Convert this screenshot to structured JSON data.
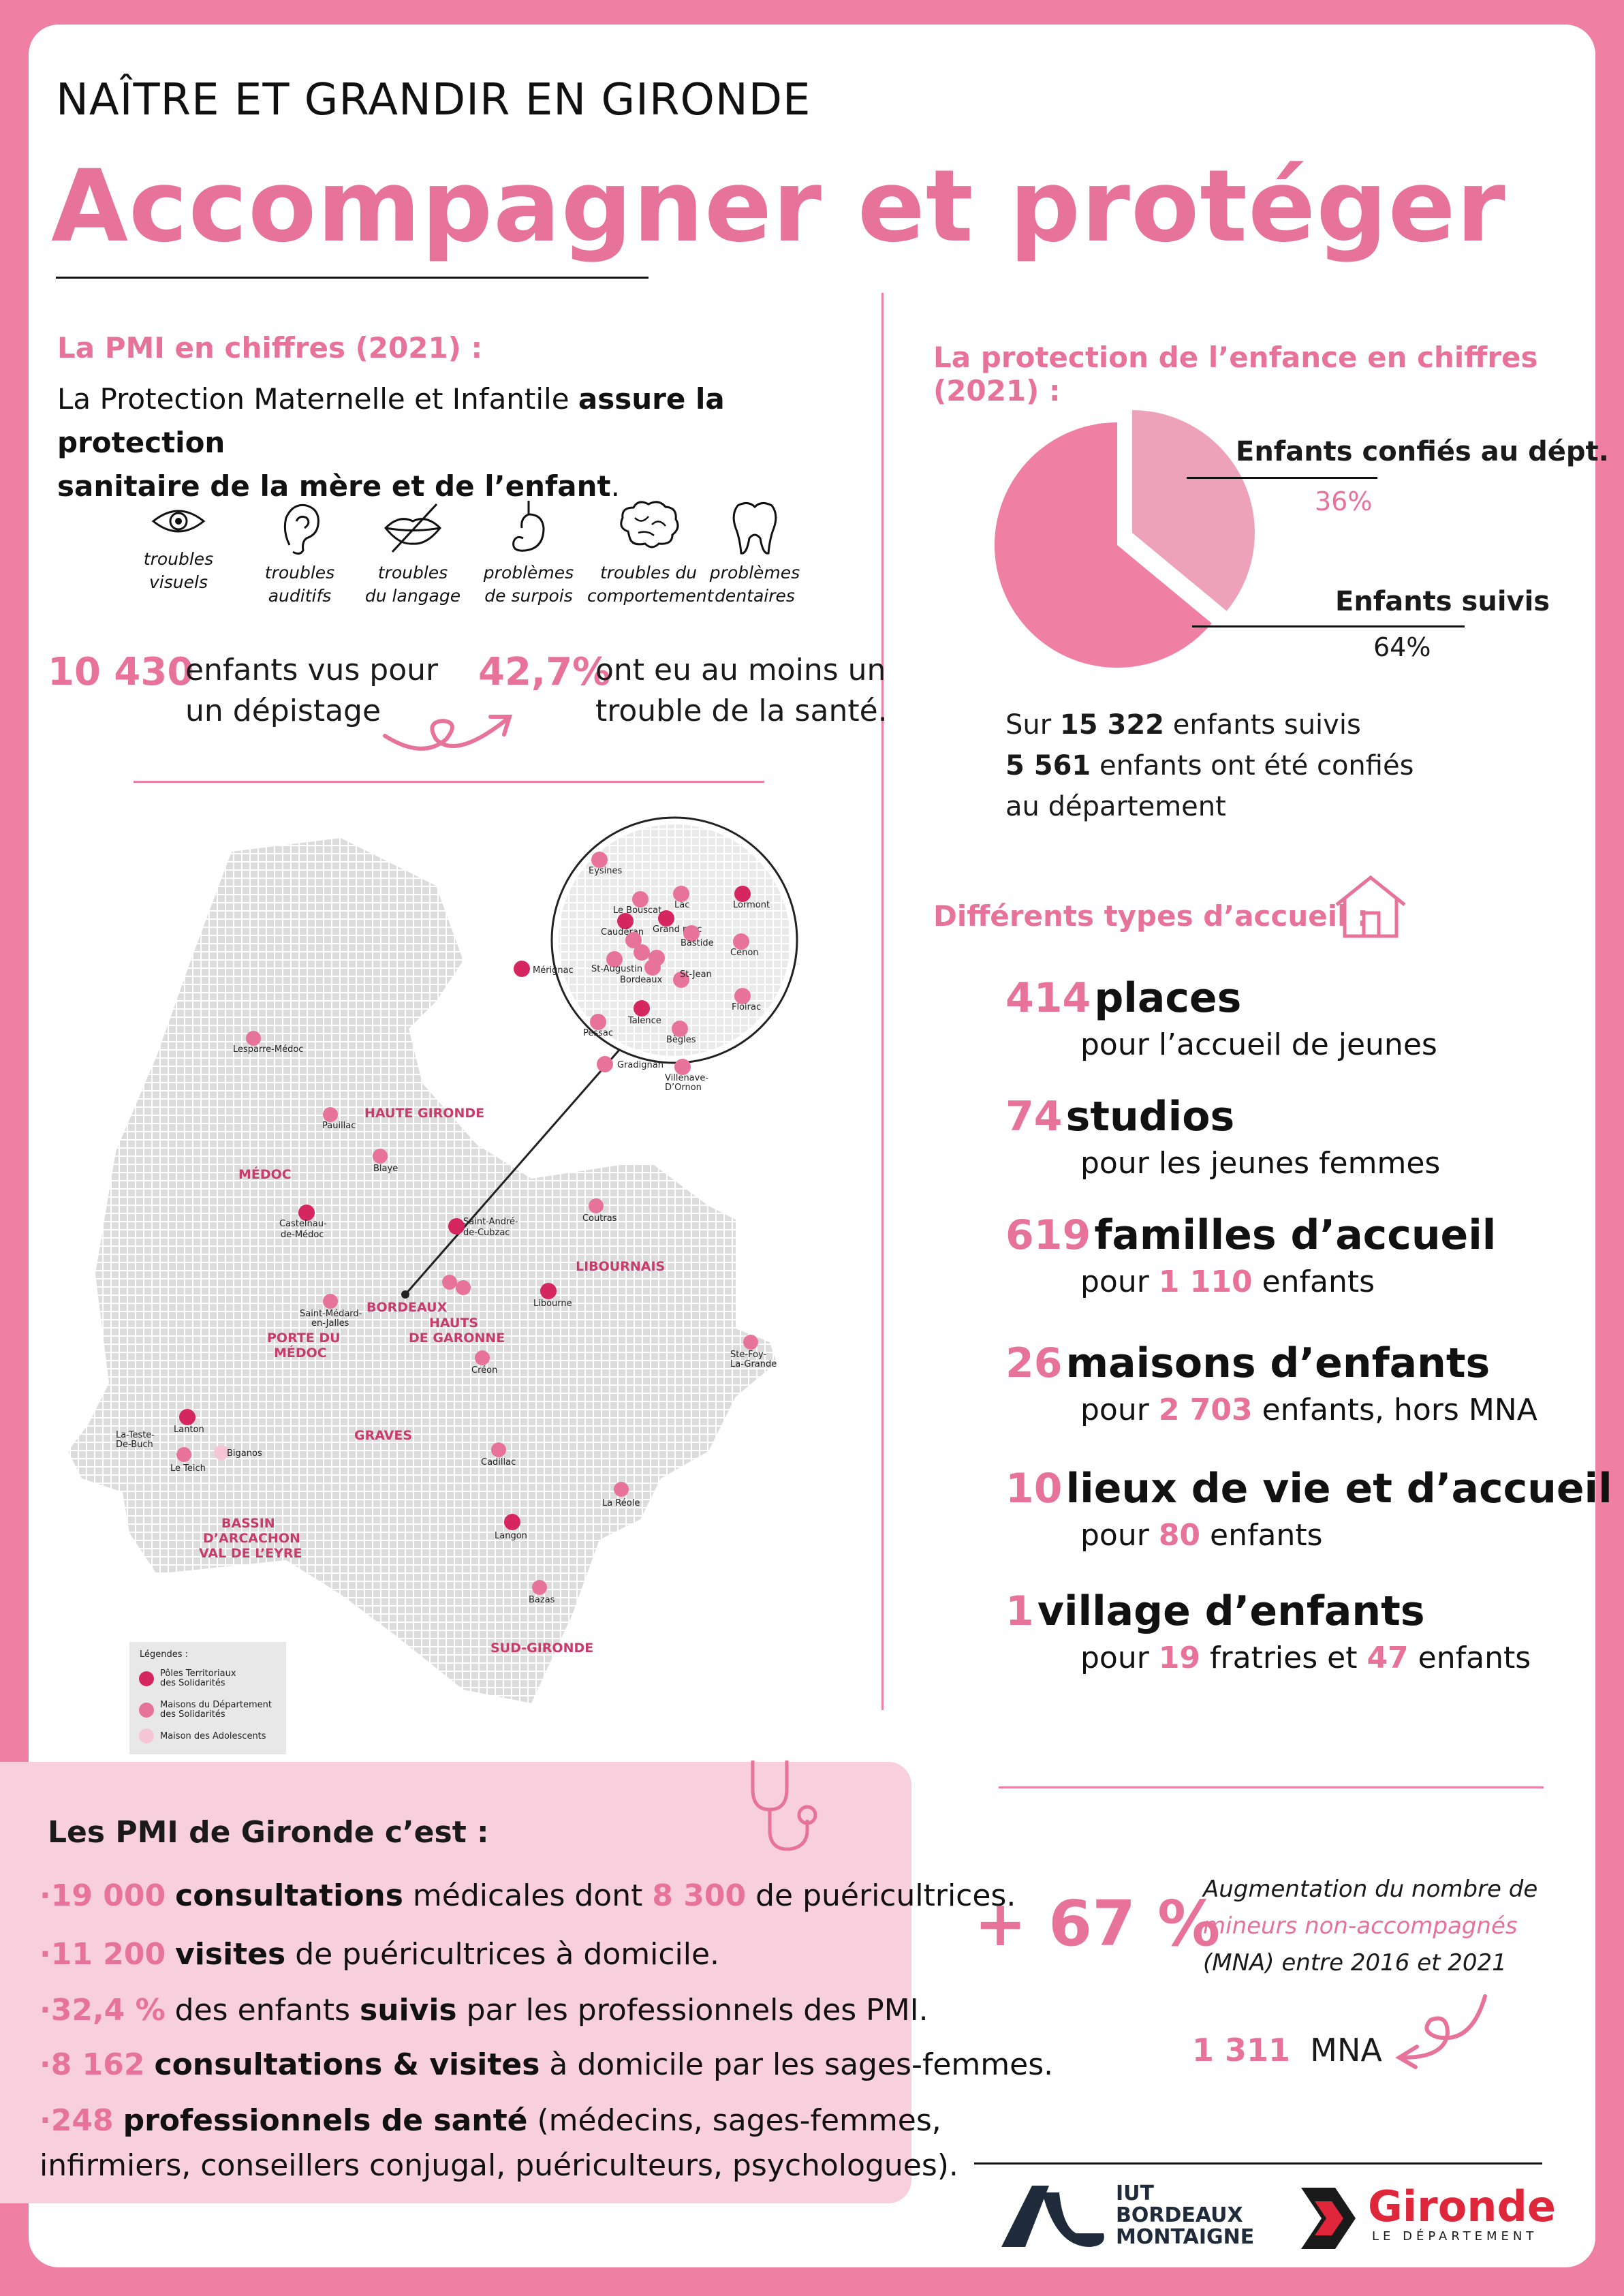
{
  "header": {
    "supertitle": "NAÎTRE ET GRANDIR EN GIRONDE",
    "title": "Accompagner et protéger"
  },
  "pmi_chiffres": {
    "heading": "La PMI en chiffres (2021) :",
    "intro_plain1": "La Protection Maternelle et Infantile ",
    "intro_bold1": "assure la protection",
    "intro_bold2": "sanitaire de la mère et de l’enfant",
    "intro_end": ".",
    "icons": [
      {
        "icon": "eye-icon",
        "line1": "troubles",
        "line2": "visuels"
      },
      {
        "icon": "ear-icon",
        "line1": "troubles",
        "line2": "auditifs"
      },
      {
        "icon": "lips-icon",
        "line1": "troubles",
        "line2": "du langage"
      },
      {
        "icon": "stomach-icon",
        "line1": "problèmes",
        "line2": "de surpois"
      },
      {
        "icon": "brain-icon",
        "line1": "troubles du",
        "line2": "comportement"
      },
      {
        "icon": "tooth-icon",
        "line1": "problèmes",
        "line2": "dentaires"
      }
    ],
    "stat1_value": "10 430",
    "stat1_line1": "enfants vus pour",
    "stat1_line2": "un dépistage",
    "stat2_value": "42,7%",
    "stat2_line1": "ont eu au moins un",
    "stat2_line2": "trouble de la santé."
  },
  "map": {
    "regions": [
      "HAUTE GIRONDE",
      "MÉDOC",
      "LIBOURNAIS",
      "BORDEAUX",
      "HAUTS",
      "DE GARONNE",
      "PORTE DU",
      "MÉDOC",
      "GRAVES",
      "BASSIN",
      "D’ARCACHON",
      "VAL DE L’EYRE",
      "SUD-GIRONDE"
    ],
    "towns": [
      "Lesparre-Médoc",
      "Pauillac",
      "Blaye",
      "Castelnau-",
      "de-Médoc",
      "Saint-André-",
      "de-Cubzac",
      "Coutras",
      "Libourne",
      "Saint-Médard-",
      "en-Jalles",
      "Créon",
      "Ste-Foy-",
      "La-Grande",
      "Lanton",
      "La-Teste-",
      "De-Buch",
      "Le Teich",
      "Biganos",
      "Cadillac",
      "La Réole",
      "Langon",
      "Bazas"
    ],
    "zoom_towns": [
      "Eysines",
      "Le Bouscat",
      "Lac",
      "Lormont",
      "Caudéran",
      "Grand parc",
      "Bastide",
      "Cenon",
      "Mérignac",
      "St-Augustin",
      "Bordeaux",
      "St-Jean",
      "Floirac",
      "Talence",
      "Pessac",
      "Bègles",
      "Gradignan",
      "Villenave-",
      "D’Ornon"
    ],
    "legend_title": "Légendes :",
    "legend_items": [
      {
        "line1": "Pôles Territoriaux",
        "line2": "des Solidarités",
        "color": "#d6265f"
      },
      {
        "line1": "Maisons du Département",
        "line2": "des Solidarités",
        "color": "#e8739a"
      },
      {
        "line1": "Maison des Adolescents",
        "line2": "",
        "color": "#f6c6d6"
      }
    ]
  },
  "protection": {
    "heading": "La protection de l’enfance en chiffres (2021) :",
    "slice1_label": "Enfants confiés au dépt.",
    "slice1_pct": "36%",
    "slice2_label": "Enfants suivis",
    "slice2_pct": "64%",
    "summary_pre": "Sur ",
    "summary_n1": "15 322",
    "summary_mid": " enfants suivis",
    "summary_n2": "5 561",
    "summary_line2": " enfants ont été confiés",
    "summary_line3": "au département"
  },
  "chart_data": {
    "type": "pie",
    "categories": [
      "Enfants confiés au dépt.",
      "Enfants suivis"
    ],
    "values": [
      36,
      64
    ],
    "colors": [
      "#eea2ba",
      "#ef7fa3"
    ]
  },
  "accueil": {
    "heading": "Différents types d’accueil :",
    "items": [
      {
        "num": "414",
        "word": "places",
        "sub_pre": "pour l’accueil de jeunes",
        "sub_num": "",
        "sub_post": "",
        "sub_num2": "",
        "sub_post2": ""
      },
      {
        "num": "74",
        "word": "studios",
        "sub_pre": "pour les jeunes femmes",
        "sub_num": "",
        "sub_post": "",
        "sub_num2": "",
        "sub_post2": ""
      },
      {
        "num": "619",
        "word": "familles d’accueil",
        "sub_pre": "pour ",
        "sub_num": "1 110",
        "sub_post": " enfants",
        "sub_num2": "",
        "sub_post2": ""
      },
      {
        "num": "26",
        "word": "maisons d’enfants",
        "sub_pre": "pour ",
        "sub_num": "2 703",
        "sub_post": " enfants, hors MNA",
        "sub_num2": "",
        "sub_post2": ""
      },
      {
        "num": "10",
        "word": "lieux de vie et d’accueil",
        "sub_pre": "pour ",
        "sub_num": "80",
        "sub_post": " enfants",
        "sub_num2": "",
        "sub_post2": ""
      },
      {
        "num": "1",
        "word": "village d’enfants",
        "sub_pre": "pour ",
        "sub_num": "19",
        "sub_post": " fratries et ",
        "sub_num2": "47",
        "sub_post2": " enfants"
      }
    ]
  },
  "pmi_gironde": {
    "heading": "Les PMI de Gironde c’est :",
    "items": [
      {
        "n": "19 000",
        "b": "consultations",
        "t": " médicales dont ",
        "n2": "8 300",
        "t2": " de puéricultrices."
      },
      {
        "n": "11 200",
        "b": "visites",
        "t": " de puéricultrices à domicile.",
        "n2": "",
        "t2": ""
      },
      {
        "n": "32,4 %",
        "b": "",
        "t": " des enfants ",
        "b2": "suivis",
        "t2": " par les professionnels des PMI."
      },
      {
        "n": "8 162",
        "b": "consultations & visites",
        "t": " à domicile par les sages-femmes.",
        "n2": "",
        "t2": ""
      },
      {
        "n": "248",
        "b": "professionnels de santé",
        "t": " (médecins, sages-femmes,",
        "n2": "",
        "t2": ""
      }
    ],
    "last_line": "infirmiers, conseillers conjugal, puériculteurs, psychologues)."
  },
  "mna": {
    "big": "+ 67 %",
    "line1": "Augmentation du nombre de",
    "line2": "mineurs non-accompagnés",
    "line3": "(MNA) entre 2016 et 2021",
    "count": "1 311",
    "count_label": "MNA"
  },
  "logos": {
    "iut_line1": "IUT",
    "iut_line2": "BORDEAUX",
    "iut_line3": "MONTAIGNE",
    "gironde": "Gironde",
    "gironde_sub": "LE DÉPARTEMENT"
  }
}
